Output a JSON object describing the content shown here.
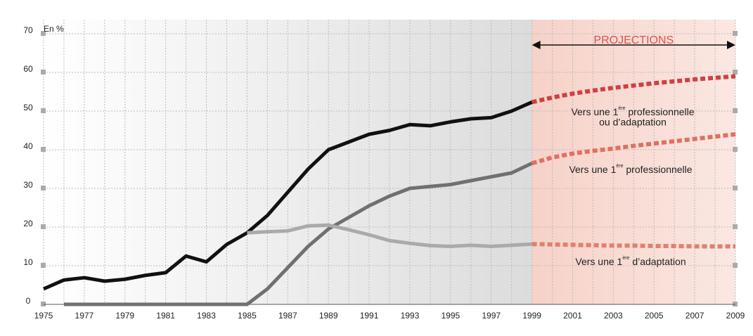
{
  "chart_data": {
    "type": "line",
    "y_unit_label": "En %",
    "projection_label": "PROJECTIONS",
    "projection_range": [
      1999,
      2009
    ],
    "xlim": [
      1975,
      2009
    ],
    "ylim": [
      0,
      70
    ],
    "xticks": [
      1975,
      1977,
      1979,
      1981,
      1983,
      1985,
      1987,
      1989,
      1991,
      1993,
      1995,
      1997,
      1999,
      2001,
      2003,
      2005,
      2007,
      2009
    ],
    "x_minor_ticks": [
      1975,
      1976,
      1977,
      1978,
      1979,
      1980,
      1981,
      1982,
      1983,
      1984,
      1985,
      1986,
      1987,
      1988,
      1989,
      1990,
      1991,
      1992,
      1993,
      1994,
      1995,
      1996,
      1997,
      1998,
      1999,
      2000,
      2001,
      2002,
      2003,
      2004,
      2005,
      2006,
      2007,
      2008,
      2009
    ],
    "yticks": [
      0,
      10,
      20,
      30,
      40,
      50,
      60,
      70
    ],
    "grid": true,
    "series": [
      {
        "color": "#111111",
        "dashed": false,
        "x": [
          1975,
          1976,
          1977,
          1978,
          1979,
          1980,
          1981,
          1982,
          1983,
          1984,
          1985,
          1986,
          1987,
          1988,
          1989,
          1990,
          1991,
          1992,
          1993,
          1994,
          1995,
          1996,
          1997,
          1998,
          1999
        ],
        "values": [
          4,
          6.3,
          6.9,
          6,
          6.5,
          7.5,
          8.2,
          12.5,
          11,
          15.5,
          18.5,
          23,
          29,
          35,
          40,
          42,
          44,
          45,
          46.5,
          46.2,
          47.2,
          48,
          48.3,
          50,
          52.3
        ]
      },
      {
        "color": "#707070",
        "dashed": false,
        "x": [
          1976,
          1977,
          1978,
          1979,
          1980,
          1981,
          1982,
          1983,
          1984,
          1985,
          1986,
          1987,
          1988,
          1989,
          1990,
          1991,
          1992,
          1993,
          1994,
          1995,
          1996,
          1997,
          1998,
          1999
        ],
        "values": [
          0,
          0,
          0,
          0,
          0,
          0,
          0,
          0,
          0,
          0,
          4,
          9.5,
          15,
          19.5,
          22.5,
          25.5,
          28,
          30,
          30.5,
          31,
          32,
          33,
          34,
          36.5
        ]
      },
      {
        "color": "#aaaaaa",
        "dashed": false,
        "x": [
          1985,
          1986,
          1987,
          1988,
          1989,
          1990,
          1991,
          1992,
          1993,
          1994,
          1995,
          1996,
          1997,
          1998,
          1999
        ],
        "values": [
          18.5,
          18.8,
          19,
          20.3,
          20.5,
          19.3,
          18,
          16.5,
          15.8,
          15.2,
          15,
          15.3,
          15,
          15.3,
          15.6
        ]
      },
      {
        "color": "#d04040",
        "dashed": true,
        "x": [
          1999,
          2000,
          2001,
          2002,
          2003,
          2004,
          2005,
          2006,
          2007,
          2008,
          2009
        ],
        "values": [
          52.3,
          53.5,
          54.5,
          55.3,
          56,
          56.6,
          57.2,
          57.7,
          58.2,
          58.6,
          59
        ]
      },
      {
        "color": "#e07060",
        "dashed": true,
        "x": [
          1999,
          2000,
          2001,
          2002,
          2003,
          2004,
          2005,
          2006,
          2007,
          2008,
          2009
        ],
        "values": [
          36.5,
          38,
          39,
          39.7,
          40.3,
          41,
          41.6,
          42.2,
          42.8,
          43.4,
          44
        ]
      },
      {
        "color": "#e08070",
        "dashed": true,
        "x": [
          1999,
          2000,
          2001,
          2002,
          2003,
          2004,
          2005,
          2006,
          2007,
          2008,
          2009
        ],
        "values": [
          15.6,
          15.5,
          15.4,
          15.3,
          15.2,
          15.2,
          15.1,
          15.1,
          15,
          15,
          15
        ]
      }
    ],
    "annotations": [
      {
        "parts": [
          "Vers une 1",
          "ère",
          " professionnelle"
        ],
        "line2": "ou d’adaptation"
      },
      {
        "parts": [
          "Vers une 1",
          "ère",
          " professionnelle"
        ]
      },
      {
        "parts": [
          "Vers une 1",
          "ère",
          " d’adaptation"
        ]
      }
    ]
  }
}
